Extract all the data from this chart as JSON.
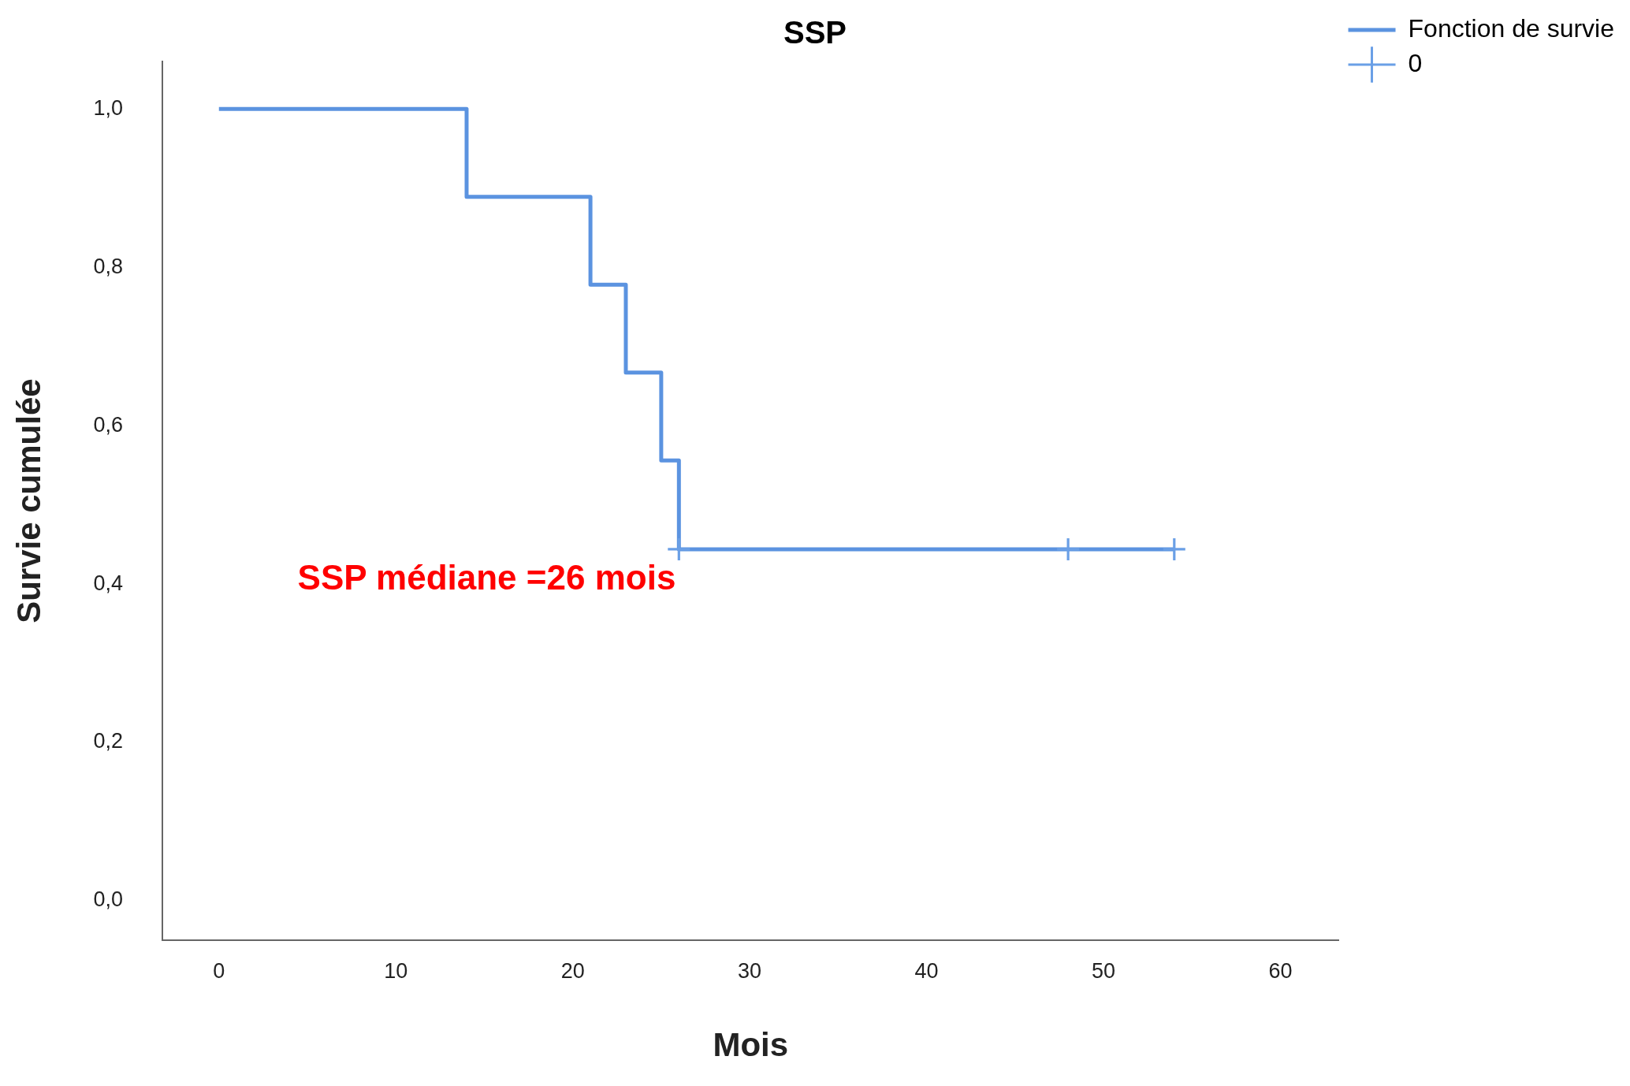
{
  "chart_data": {
    "type": "step",
    "title": "SSP",
    "xlabel": "Mois",
    "ylabel": "Survie cumulée",
    "xlim": [
      -3.2,
      63.3
    ],
    "xticks": [
      0,
      10,
      20,
      30,
      40,
      50,
      60
    ],
    "ylim": [
      -0.05,
      1.06
    ],
    "yticks": [
      {
        "value": 0,
        "label": "0,0"
      },
      {
        "value": 0.2,
        "label": "0,2"
      },
      {
        "value": 0.4,
        "label": "0,4"
      },
      {
        "value": 0.6,
        "label": "0,6"
      },
      {
        "value": 0.8,
        "label": "0,8"
      },
      {
        "value": 1,
        "label": "1,0"
      }
    ],
    "grid": false,
    "legend": "top right",
    "series": [
      {
        "name": "Fonction de survie",
        "color": "#5b93e0",
        "x": [
          0,
          14,
          21,
          23,
          25,
          26,
          54
        ],
        "values": [
          1,
          0.889,
          0.778,
          0.667,
          0.556,
          0.444,
          0.444
        ]
      },
      {
        "name": "0",
        "type": "scatter",
        "marker": "cross",
        "color": "#6a9fe6",
        "x": [
          26,
          48,
          54
        ],
        "values": [
          0.444,
          0.444,
          0.444
        ]
      }
    ],
    "annotations": [
      "SSP médiane =26 mois"
    ]
  }
}
